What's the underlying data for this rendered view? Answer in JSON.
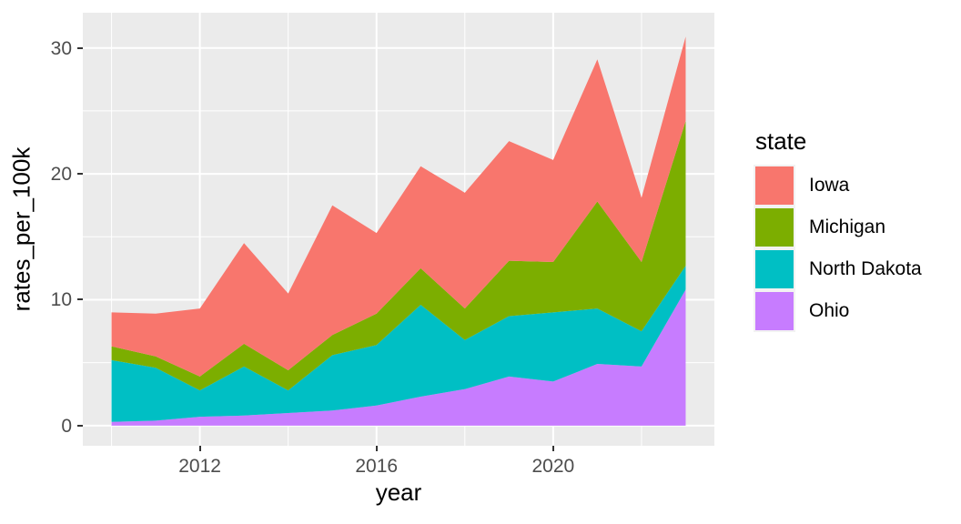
{
  "chart_data": {
    "type": "area",
    "stacked": true,
    "title": "",
    "xlabel": "year",
    "ylabel": "rates_per_100k",
    "legend_title": "state",
    "x": [
      2010,
      2011,
      2012,
      2013,
      2014,
      2015,
      2016,
      2017,
      2018,
      2019,
      2020,
      2021,
      2022,
      2023
    ],
    "series": [
      {
        "name": "Iowa",
        "color": "#F8766D",
        "values": [
          2.7,
          3.4,
          5.4,
          8.0,
          6.1,
          10.3,
          6.4,
          8.1,
          9.2,
          9.5,
          8.1,
          11.3,
          5.1,
          6.7
        ]
      },
      {
        "name": "Michigan",
        "color": "#7CAE00",
        "values": [
          1.1,
          0.9,
          1.1,
          1.8,
          1.6,
          1.6,
          2.5,
          2.9,
          2.5,
          4.4,
          4.0,
          8.5,
          5.5,
          11.5
        ]
      },
      {
        "name": "North Dakota",
        "color": "#00BFC4",
        "values": [
          4.9,
          4.2,
          2.1,
          3.9,
          1.8,
          4.4,
          4.8,
          7.3,
          3.9,
          4.8,
          5.5,
          4.4,
          2.8,
          1.9
        ]
      },
      {
        "name": "Ohio",
        "color": "#C77CFF",
        "values": [
          0.3,
          0.4,
          0.7,
          0.8,
          1.0,
          1.2,
          1.6,
          2.3,
          2.9,
          3.9,
          3.5,
          4.9,
          4.7,
          10.8
        ]
      }
    ],
    "stack_order_bottom_to_top": [
      "Ohio",
      "North Dakota",
      "Michigan",
      "Iowa"
    ],
    "x_ticks": [
      2012,
      2016,
      2020
    ],
    "x_minor_ticks": [
      2010,
      2014,
      2018,
      2022
    ],
    "y_ticks": [
      0,
      10,
      20,
      30
    ],
    "y_minor_ticks": [
      5,
      15,
      25
    ],
    "xlim": [
      2009.35,
      2023.65
    ],
    "ylim": [
      -1.6,
      32.8
    ],
    "legend_position": "right",
    "grid": true,
    "panel_bg": "#EBEBEB",
    "grid_color": "#FFFFFF",
    "tick_mark_color": "#333333",
    "tick_label_color": "#4D4D4D",
    "axis_title_color": "#000000"
  }
}
